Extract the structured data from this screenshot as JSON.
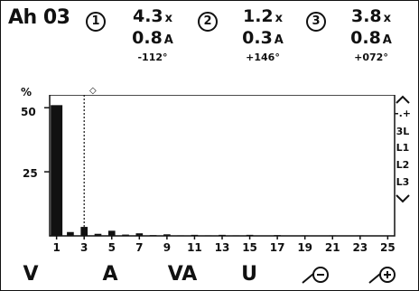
{
  "header": {
    "title": "Ah 03",
    "phases": [
      {
        "marker": "1",
        "thd": "4.3",
        "thd_unit": "x",
        "current": "0.8",
        "current_unit": "A",
        "angle": "-112°"
      },
      {
        "marker": "2",
        "thd": "1.2",
        "thd_unit": "x",
        "current": "0.3",
        "current_unit": "A",
        "angle": "+146°"
      },
      {
        "marker": "3",
        "thd": "3.8",
        "thd_unit": "x",
        "current": "0.8",
        "current_unit": "A",
        "angle": "+072°"
      }
    ]
  },
  "chart": {
    "y_unit_label": "%",
    "cursor_marker": "◇",
    "cursor_order": 3
  },
  "chart_data": {
    "type": "bar",
    "title": "",
    "xlabel": "",
    "ylabel": "%",
    "y_ticks": [
      "25",
      "50"
    ],
    "x_ticks": [
      "1",
      "3",
      "5",
      "7",
      "9",
      "11",
      "13",
      "15",
      "17",
      "19",
      "21",
      "23",
      "25"
    ],
    "ylim": [
      0,
      55
    ],
    "categories": [
      "1",
      "2",
      "3",
      "4",
      "5",
      "6",
      "7",
      "8",
      "9",
      "10",
      "11",
      "12",
      "13",
      "14",
      "15",
      "16",
      "17",
      "18",
      "19",
      "20",
      "21",
      "22",
      "23",
      "24",
      "25"
    ],
    "series": [
      {
        "values": [
          51,
          1.5,
          3.5,
          0.8,
          2.0,
          0.5,
          1.0,
          0.3,
          0.6,
          0.2,
          0.4,
          0.2,
          0.4,
          0.2,
          0.4,
          0.1,
          0.3,
          0.1,
          0.2,
          0.1,
          0.2,
          0.1,
          0.2,
          0.1,
          0.1
        ]
      }
    ]
  },
  "side_menu": {
    "up_icon": "chevron-up",
    "items": [
      "-.+",
      "3L",
      "L1",
      "L2",
      "L3"
    ],
    "down_icon": "chevron-down"
  },
  "function_keys": [
    "V",
    "A",
    "VA",
    "U"
  ],
  "function_icons": [
    "zoom-out",
    "zoom-in"
  ]
}
